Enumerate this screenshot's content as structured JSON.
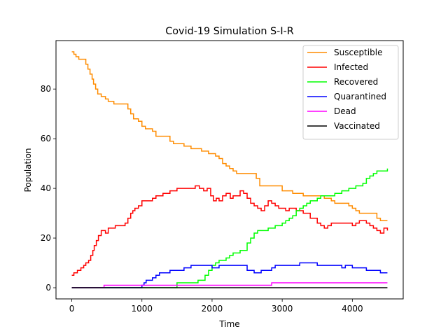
{
  "chart_data": {
    "type": "line",
    "title": "Covid-19 Simulation S-I-R",
    "xlabel": "Time",
    "ylabel": "Population",
    "xlim": [
      -225,
      4725
    ],
    "ylim": [
      -4.5,
      99.5
    ],
    "xticks": [
      0,
      1000,
      2000,
      3000,
      4000
    ],
    "yticks": [
      0,
      20,
      40,
      60,
      80
    ],
    "grid": false,
    "legend_position": "top-right",
    "series": [
      {
        "name": "Susceptible",
        "color": "#ff8c00",
        "x": [
          0,
          30,
          60,
          100,
          150,
          200,
          230,
          260,
          290,
          310,
          340,
          370,
          420,
          480,
          520,
          600,
          700,
          800,
          840,
          880,
          950,
          1000,
          1050,
          1150,
          1200,
          1250,
          1400,
          1450,
          1500,
          1600,
          1700,
          1850,
          1950,
          2050,
          2100,
          2150,
          2200,
          2250,
          2300,
          2350,
          2400,
          2500,
          2630,
          2680,
          2750,
          2850,
          3000,
          3150,
          3300,
          3450,
          3600,
          3700,
          3750,
          3850,
          3950,
          4000,
          4050,
          4100,
          4250,
          4350,
          4400,
          4500
        ],
        "y": [
          95,
          94,
          93,
          92,
          92,
          90,
          88,
          86,
          84,
          82,
          80,
          78,
          77,
          76,
          75,
          74,
          74,
          72,
          70,
          68,
          67,
          65,
          64,
          63,
          61,
          61,
          59,
          58,
          58,
          57,
          56,
          55,
          54,
          53,
          52,
          50,
          49,
          48,
          47,
          46,
          46,
          46,
          44,
          41,
          41,
          41,
          39,
          38,
          37,
          37,
          36,
          35,
          34,
          34,
          33,
          32,
          31,
          30,
          30,
          28,
          27,
          27
        ]
      },
      {
        "name": "Infected",
        "color": "#ff0000",
        "x": [
          0,
          30,
          80,
          130,
          170,
          200,
          240,
          270,
          300,
          320,
          350,
          380,
          420,
          480,
          520,
          620,
          700,
          760,
          800,
          840,
          870,
          900,
          950,
          1000,
          1050,
          1100,
          1150,
          1200,
          1300,
          1400,
          1500,
          1600,
          1700,
          1760,
          1820,
          1880,
          1930,
          1980,
          2020,
          2060,
          2100,
          2150,
          2200,
          2260,
          2300,
          2350,
          2400,
          2450,
          2500,
          2550,
          2600,
          2650,
          2700,
          2750,
          2800,
          2850,
          2900,
          2950,
          3000,
          3050,
          3100,
          3200,
          3300,
          3400,
          3500,
          3550,
          3600,
          3650,
          3700,
          3800,
          3900,
          4000,
          4050,
          4100,
          4150,
          4200,
          4250,
          4300,
          4350,
          4400,
          4450,
          4500
        ],
        "y": [
          5,
          6,
          7,
          8,
          9,
          10,
          11,
          13,
          15,
          17,
          19,
          21,
          23,
          22,
          24,
          25,
          25,
          26,
          28,
          30,
          31,
          32,
          33,
          35,
          35,
          35,
          36,
          37,
          38,
          39,
          40,
          40,
          40,
          41,
          40,
          39,
          40,
          37,
          35,
          36,
          35,
          37,
          38,
          36,
          37,
          37,
          39,
          38,
          36,
          34,
          33,
          32,
          31,
          33,
          35,
          34,
          33,
          32,
          32,
          31,
          32,
          31,
          30,
          28,
          26,
          25,
          24,
          25,
          26,
          26,
          26,
          25,
          26,
          27,
          27,
          26,
          25,
          24,
          23,
          22,
          24,
          23
        ]
      },
      {
        "name": "Recovered",
        "color": "#00ff00",
        "x": [
          0,
          1500,
          1800,
          1900,
          1950,
          2000,
          2050,
          2100,
          2150,
          2200,
          2250,
          2300,
          2350,
          2400,
          2500,
          2550,
          2600,
          2650,
          2700,
          2800,
          2900,
          3000,
          3050,
          3100,
          3150,
          3200,
          3250,
          3300,
          3350,
          3400,
          3450,
          3500,
          3550,
          3600,
          3650,
          3700,
          3750,
          3800,
          3850,
          3900,
          3950,
          4000,
          4050,
          4100,
          4150,
          4200,
          4250,
          4300,
          4350,
          4400,
          4450,
          4500
        ],
        "y": [
          0,
          2,
          3,
          5,
          7,
          9,
          10,
          11,
          11,
          12,
          13,
          14,
          14,
          15,
          18,
          20,
          22,
          23,
          23,
          24,
          25,
          26,
          27,
          28,
          29,
          31,
          32,
          33,
          34,
          35,
          35,
          36,
          37,
          37,
          37,
          37,
          38,
          38,
          39,
          39,
          40,
          40,
          41,
          41,
          42,
          44,
          45,
          46,
          47,
          47,
          47,
          48
        ]
      },
      {
        "name": "Quarantined",
        "color": "#0000ff",
        "x": [
          0,
          1000,
          1030,
          1060,
          1100,
          1150,
          1200,
          1250,
          1300,
          1400,
          1450,
          1500,
          1600,
          1700,
          1800,
          1900,
          2000,
          2100,
          2200,
          2300,
          2400,
          2500,
          2600,
          2700,
          2800,
          2850,
          2900,
          3000,
          3100,
          3200,
          3250,
          3300,
          3400,
          3500,
          3600,
          3700,
          3800,
          3850,
          3900,
          4000,
          4100,
          4200,
          4300,
          4400,
          4500
        ],
        "y": [
          0,
          1,
          2,
          3,
          3,
          4,
          5,
          6,
          6,
          7,
          7,
          7,
          8,
          9,
          9,
          9,
          8,
          9,
          9,
          9,
          9,
          7,
          6,
          7,
          7,
          8,
          9,
          9,
          9,
          9,
          10,
          10,
          10,
          9,
          9,
          9,
          9,
          8,
          9,
          8,
          8,
          7,
          7,
          6,
          6
        ]
      },
      {
        "name": "Dead",
        "color": "#ff00ff",
        "x": [
          0,
          460,
          2850,
          4500
        ],
        "y": [
          0,
          1,
          2,
          2
        ]
      },
      {
        "name": "Vaccinated",
        "color": "#000000",
        "x": [
          0,
          4500
        ],
        "y": [
          0,
          0
        ]
      }
    ]
  }
}
